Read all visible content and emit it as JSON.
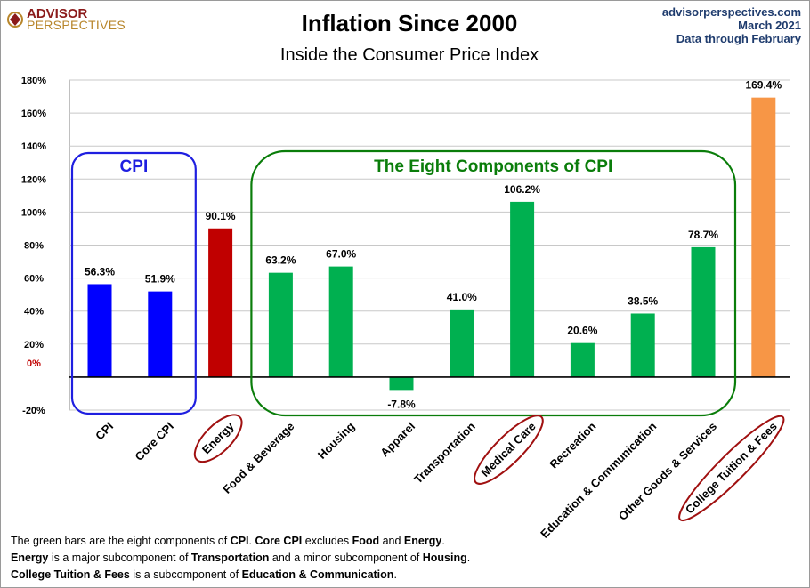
{
  "header": {
    "logo_line1": "ADVISOR",
    "logo_line2": "PERSPECTIVES",
    "title": "Inflation Since 2000",
    "subtitle": "Inside the Consumer Price Index",
    "source_site": "advisorperspectives.com",
    "source_date": "March 2021",
    "source_data": "Data through February"
  },
  "groups": {
    "cpi_label": "CPI",
    "eight_label": "The Eight Components of CPI"
  },
  "colors": {
    "cpi": "#0000ff",
    "energy": "#c00000",
    "components": "#00b050",
    "college": "#f79646",
    "cpi_box": "#1f1fe0",
    "eight_box": "#0a7d0a",
    "highlight_oval": "#a01010"
  },
  "chart_data": {
    "type": "bar",
    "title": "Inflation Since 2000",
    "subtitle": "Inside the Consumer Price Index",
    "ylim": [
      -20,
      180
    ],
    "yticks": [
      "-20%",
      "0%",
      "20%",
      "40%",
      "60%",
      "80%",
      "100%",
      "120%",
      "140%",
      "160%",
      "180%"
    ],
    "grid": true,
    "categories": [
      "CPI",
      "Core CPI",
      "Energy",
      "Food & Beverage",
      "Housing",
      "Apparel",
      "Transportation",
      "Medical Care",
      "Recreation",
      "Education & Communication",
      "Other Goods & Services",
      "College Tuition & Fees"
    ],
    "values": [
      56.3,
      51.9,
      90.1,
      63.2,
      67.0,
      -7.8,
      41.0,
      106.2,
      20.6,
      38.5,
      78.7,
      169.4
    ],
    "value_labels": [
      "56.3%",
      "51.9%",
      "90.1%",
      "63.2%",
      "67.0%",
      "-7.8%",
      "41.0%",
      "106.2%",
      "20.6%",
      "38.5%",
      "78.7%",
      "169.4%"
    ],
    "bar_color_keys": [
      "cpi",
      "cpi",
      "energy",
      "components",
      "components",
      "components",
      "components",
      "components",
      "components",
      "components",
      "components",
      "college"
    ],
    "circled_categories": [
      "Energy",
      "Medical Care",
      "College Tuition & Fees"
    ]
  },
  "notes": {
    "line1": [
      {
        "t": "The green bars are the eight components of ",
        "b": false
      },
      {
        "t": "CPI",
        "b": true
      },
      {
        "t": ". ",
        "b": false
      },
      {
        "t": "Core CPI",
        "b": true
      },
      {
        "t": " excludes ",
        "b": false
      },
      {
        "t": "Food",
        "b": true
      },
      {
        "t": " and ",
        "b": false
      },
      {
        "t": "Energy",
        "b": true
      },
      {
        "t": ".",
        "b": false
      }
    ],
    "line2": [
      {
        "t": "Energy",
        "b": true
      },
      {
        "t": " is a  major subcomponent of ",
        "b": false
      },
      {
        "t": "Transportation",
        "b": true
      },
      {
        "t": " and a minor subcomponent of ",
        "b": false
      },
      {
        "t": "Housing",
        "b": true
      },
      {
        "t": ".",
        "b": false
      }
    ],
    "line3": [
      {
        "t": "College Tuition & Fees",
        "b": true
      },
      {
        "t": " is a subcomponent of ",
        "b": false
      },
      {
        "t": "Education & Communication",
        "b": true
      },
      {
        "t": ".",
        "b": false
      }
    ]
  }
}
